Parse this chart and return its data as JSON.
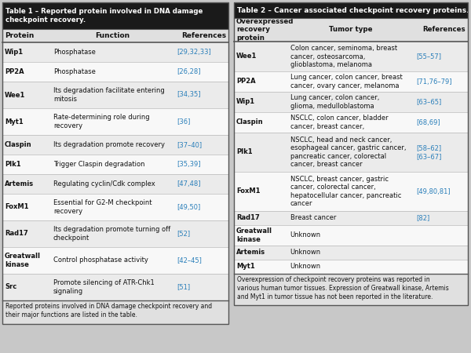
{
  "table1_title": "Table 1 – Reported protein involved in DNA damage\ncheckpoint recovery.",
  "table1_header": [
    "Protein",
    "Function",
    "References"
  ],
  "table1_rows": [
    [
      "Wip1",
      "Phosphatase",
      "[29,32,33]"
    ],
    [
      "PP2A",
      "Phosphatase",
      "[26,28]"
    ],
    [
      "Wee1",
      "Its degradation facilitate entering\nmitosis",
      "[34,35]"
    ],
    [
      "Myt1",
      "Rate-determining role during\nrecovery",
      "[36]"
    ],
    [
      "Claspin",
      "Its degradation promote recovery",
      "[37–40]"
    ],
    [
      "Plk1",
      "Trigger Claspin degradation",
      "[35,39]"
    ],
    [
      "Artemis",
      "Regulating cyclin/Cdk complex",
      "[47,48]"
    ],
    [
      "FoxM1",
      "Essential for G2-M checkpoint\nrecovery",
      "[49,50]"
    ],
    [
      "Rad17",
      "Its degradation promote turning off\ncheckpoint",
      "[52]"
    ],
    [
      "Greatwall\nkinase",
      "Control phosphatase activity",
      "[42–45]"
    ],
    [
      "Src",
      "Promote silencing of ATR-Chk1\nsignaling",
      "[51]"
    ]
  ],
  "table1_footer": "Reported proteins involved in DNA damage checkpoint recovery and\ntheir major functions are listed in the table.",
  "table2_title": "Table 2 – Cancer associated checkpoint recovery proteins.",
  "table2_header": [
    "Overexpressed\nrecovery\nprotein",
    "Tumor type",
    "References"
  ],
  "table2_rows": [
    [
      "Wee1",
      "Colon cancer, seminoma, breast\ncancer, osteosarcoma,\nglioblastoma, melanoma",
      "[55–57]"
    ],
    [
      "PP2A",
      "Lung cancer, colon cancer, breast\ncancer, ovary cancer, melanoma",
      "[71,76–79]"
    ],
    [
      "Wip1",
      "Lung cancer, colon cancer,\nglioma, medulloblastoma",
      "[63–65]"
    ],
    [
      "Claspin",
      "NSCLC, colon cancer, bladder\ncancer, breast cancer,",
      "[68,69]"
    ],
    [
      "Plk1",
      "NSCLC, head and neck cancer,\nesophageal cancer, gastric cancer,\npancreatic cancer, colorectal\ncancer, breast cancer",
      "[58–62]\n[63–67]"
    ],
    [
      "FoxM1",
      "NSCLC, breast cancer, gastric\ncancer, colorectal cancer,\nhepatocellular cancer, pancreatic\ncancer",
      "[49,80,81]"
    ],
    [
      "Rad17",
      "Breast cancer",
      "[82]"
    ],
    [
      "Greatwall\nkinase",
      "Unknown",
      ""
    ],
    [
      "Artemis",
      "Unknown",
      ""
    ],
    [
      "Myt1",
      "Unknown",
      ""
    ]
  ],
  "table2_footer": "Overexpression of checkpoint recovery proteins was reported in\nvarious human tumor tissues. Expression of Greatwall kinase, Artemis\nand Myt1 in tumor tissue has not been reported in the literature.",
  "header_bg": "#1a1a1a",
  "header_fg": "#ffffff",
  "col_header_bg": "#e0e0e0",
  "row_bg_light": "#ebebeb",
  "row_bg_white": "#f8f8f8",
  "ref_color": "#2a7fba",
  "protein_color": "#111111",
  "text_color": "#111111",
  "footer_bg": "#e0e0e0",
  "border_color": "#555555",
  "sep_color": "#aaaaaa",
  "outer_bg": "#c8c8c8"
}
